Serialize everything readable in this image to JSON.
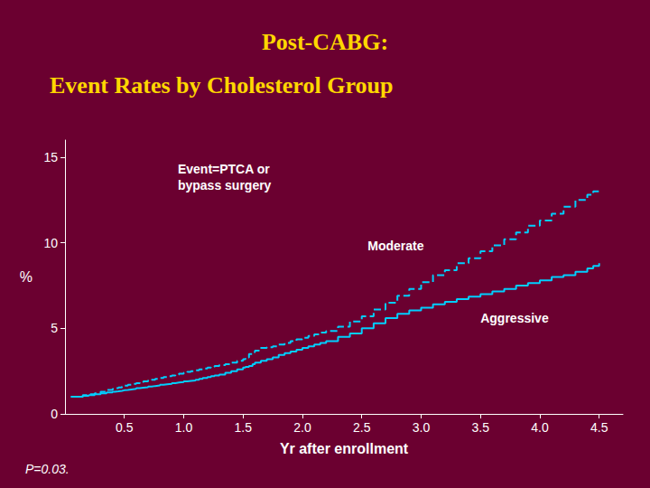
{
  "chart_data": {
    "type": "step",
    "title": "Post-CABG:",
    "subtitle": "Event Rates by Cholesterol Group",
    "x_label": "Yr after enrollment",
    "y_label": "%",
    "annotations": [
      "Event=PTCA or\nbypass surgery",
      "P=0.03."
    ],
    "grid": false,
    "xlim": [
      0.0,
      4.7
    ],
    "xticks": [
      0.5,
      {
        "value": 1,
        "label": "1.0"
      },
      1.5,
      {
        "value": 2,
        "label": "2.0"
      },
      2.5,
      {
        "value": 3,
        "label": "3.0"
      },
      3.5,
      {
        "value": 4,
        "label": "4.0"
      },
      4.5
    ],
    "ylim": [
      0,
      16
    ],
    "yticks": [
      0,
      5,
      10,
      15
    ],
    "x": [
      0.05,
      0.15,
      0.2,
      0.25,
      0.3,
      0.35,
      0.4,
      0.42,
      0.45,
      0.48,
      0.5,
      0.53,
      0.56,
      0.6,
      0.63,
      0.66,
      0.7,
      0.73,
      0.76,
      0.8,
      0.83,
      0.86,
      0.9,
      0.93,
      0.96,
      1.0,
      1.03,
      1.06,
      1.1,
      1.13,
      1.16,
      1.2,
      1.23,
      1.26,
      1.3,
      1.35,
      1.4,
      1.45,
      1.5,
      1.52,
      1.55,
      1.58,
      1.6,
      1.65,
      1.7,
      1.75,
      1.8,
      1.85,
      1.9,
      1.95,
      2.0,
      2.05,
      2.1,
      2.15,
      2.2,
      2.3,
      2.4,
      2.5,
      2.6,
      2.7,
      2.8,
      2.9,
      3.0,
      3.1,
      3.2,
      3.3,
      3.4,
      3.5,
      3.6,
      3.7,
      3.8,
      3.9,
      4.0,
      4.1,
      4.2,
      4.3,
      4.4,
      4.45,
      4.5
    ],
    "series": [
      {
        "name": "Moderate",
        "color": "#00CFFF",
        "line_style": "dashed",
        "values": [
          1.0,
          1.1,
          1.15,
          1.2,
          1.3,
          1.4,
          1.45,
          1.5,
          1.55,
          1.6,
          1.65,
          1.7,
          1.75,
          1.8,
          1.85,
          1.9,
          1.95,
          2.0,
          2.05,
          2.1,
          2.15,
          2.2,
          2.25,
          2.3,
          2.35,
          2.4,
          2.45,
          2.5,
          2.55,
          2.6,
          2.65,
          2.7,
          2.75,
          2.8,
          2.85,
          2.9,
          3.0,
          3.1,
          3.2,
          3.3,
          3.5,
          3.6,
          3.7,
          3.85,
          3.9,
          3.95,
          4.05,
          4.15,
          4.25,
          4.35,
          4.45,
          4.55,
          4.65,
          4.75,
          4.85,
          5.1,
          5.4,
          5.7,
          6.1,
          6.5,
          6.9,
          7.3,
          7.7,
          8.1,
          8.4,
          8.8,
          9.1,
          9.5,
          9.85,
          10.2,
          10.6,
          11.0,
          11.3,
          11.7,
          12.1,
          12.5,
          12.8,
          13.0,
          13.0
        ]
      },
      {
        "name": "Aggressive",
        "color": "#00CFFF",
        "line_style": "solid",
        "values": [
          1.0,
          1.05,
          1.1,
          1.15,
          1.2,
          1.25,
          1.3,
          1.32,
          1.35,
          1.38,
          1.4,
          1.43,
          1.46,
          1.5,
          1.53,
          1.56,
          1.6,
          1.63,
          1.66,
          1.7,
          1.73,
          1.76,
          1.8,
          1.83,
          1.86,
          1.9,
          1.93,
          1.96,
          2.0,
          2.05,
          2.1,
          2.15,
          2.2,
          2.25,
          2.3,
          2.4,
          2.5,
          2.6,
          2.7,
          2.75,
          2.8,
          2.9,
          3.0,
          3.1,
          3.2,
          3.3,
          3.45,
          3.55,
          3.65,
          3.75,
          3.85,
          3.95,
          4.05,
          4.15,
          4.25,
          4.5,
          4.7,
          5.0,
          5.3,
          5.6,
          5.85,
          6.05,
          6.2,
          6.4,
          6.55,
          6.7,
          6.85,
          7.0,
          7.15,
          7.3,
          7.5,
          7.65,
          7.8,
          8.0,
          8.1,
          8.3,
          8.5,
          8.65,
          8.8
        ]
      }
    ]
  }
}
